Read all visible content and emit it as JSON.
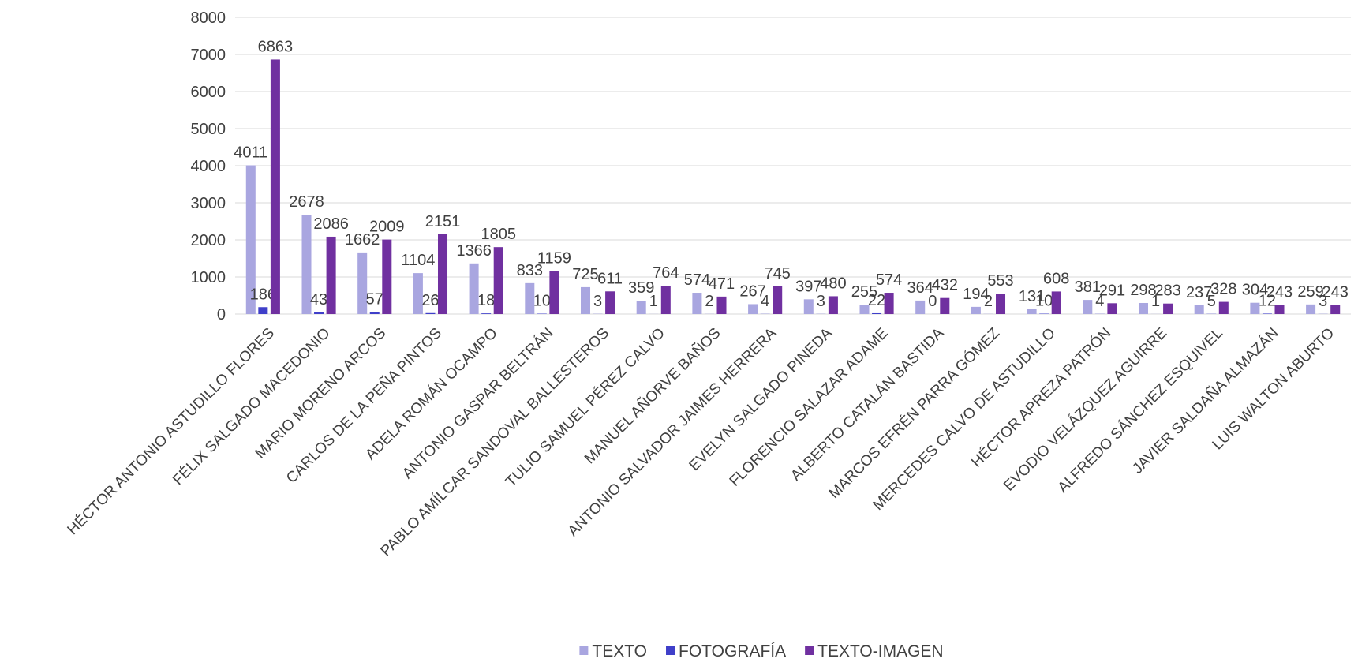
{
  "chart_data": {
    "type": "bar",
    "categories": [
      "HÉCTOR ANTONIO ASTUDILLO FLORES",
      "FÉLIX SALGADO MACEDONIO",
      "MARIO MORENO ARCOS",
      "CARLOS DE LA PEÑA PINTOS",
      "ADELA ROMÁN OCAMPO",
      "ANTONIO GASPAR BELTRÁN",
      "PABLO AMÍLCAR SANDOVAL BALLESTEROS",
      "TULIO SAMUEL PÉREZ CALVO",
      "MANUEL AÑORVE BAÑOS",
      "ANTONIO SALVADOR JAIMES HERRERA",
      "EVELYN SALGADO PINEDA",
      "FLORENCIO SALAZAR ADAME",
      "ALBERTO CATALÁN BASTIDA",
      "MARCOS EFRÉN PARRA GÓMEZ",
      "MERCEDES CALVO DE ASTUDILLO",
      "HÉCTOR APREZA PATRÓN",
      "EVODIO VELÁZQUEZ AGUIRRE",
      "ALFREDO SÁNCHEZ ESQUIVEL",
      "JAVIER SALDAÑA ALMAZÁN",
      "LUIS WALTON ABURTO"
    ],
    "series": [
      {
        "name": "TEXTO",
        "color": "#a9a6e0",
        "values": [
          4011,
          2678,
          1662,
          1104,
          1366,
          833,
          725,
          359,
          574,
          267,
          397,
          255,
          364,
          194,
          131,
          381,
          298,
          237,
          304,
          259
        ]
      },
      {
        "name": "FOTOGRAFÍA",
        "color": "#3f3fc9",
        "values": [
          186,
          43,
          57,
          26,
          18,
          10,
          3,
          1,
          2,
          4,
          3,
          22,
          0,
          2,
          10,
          4,
          1,
          5,
          12,
          3
        ]
      },
      {
        "name": "TEXTO-IMAGEN",
        "color": "#7030a0",
        "values": [
          6863,
          2086,
          2009,
          2151,
          1805,
          1159,
          611,
          764,
          471,
          745,
          480,
          574,
          432,
          553,
          608,
          291,
          283,
          328,
          243,
          243
        ]
      }
    ],
    "ylim": [
      0,
      8000
    ],
    "yticks": [
      0,
      1000,
      2000,
      3000,
      4000,
      5000,
      6000,
      7000,
      8000
    ],
    "grid": true,
    "legend": "bottom"
  }
}
